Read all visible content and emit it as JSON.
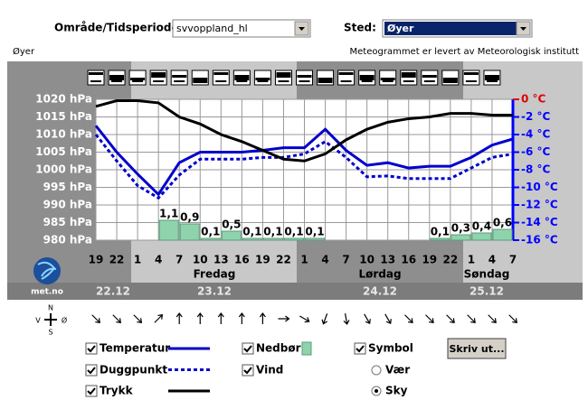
{
  "header": {
    "area_label": "Område/Tidsperiode:",
    "area_value": "svvoppland_hl",
    "place_label": "Sted:",
    "place_value": "Øyer"
  },
  "chart_header": {
    "place": "Øyer",
    "credit": "Meteogrammet er levert av Meteorologisk institutt"
  },
  "chart_data": {
    "type": "meteogram",
    "categories": [
      "19",
      "22",
      "1",
      "4",
      "7",
      "10",
      "13",
      "16",
      "19",
      "22",
      "1",
      "4",
      "7",
      "10",
      "13",
      "16",
      "19",
      "22",
      "1",
      "4",
      "7"
    ],
    "days": [
      {
        "date": "22.12"
      },
      {
        "name": "Fredag",
        "date": "23.12"
      },
      {
        "name": "Lørdag",
        "date": "24.12"
      },
      {
        "name": "Søndag",
        "date": "25.12"
      }
    ],
    "ylim": [
      980,
      1020
    ],
    "yticks": [
      {
        "value": 1020,
        "label": "1020 hPa"
      },
      {
        "value": 1015,
        "label": "1015 hPa"
      },
      {
        "value": 1010,
        "label": "1010 hPa"
      },
      {
        "value": 1005,
        "label": "1005 hPa"
      },
      {
        "value": 1000,
        "label": "1000 hPa"
      },
      {
        "value": 995,
        "label": "995 hPa"
      },
      {
        "value": 990,
        "label": "990 hPa"
      },
      {
        "value": 985,
        "label": "985 hPa"
      },
      {
        "value": 980,
        "label": "980 hPa"
      }
    ],
    "y2lim": [
      -16,
      0
    ],
    "y2ticks": [
      {
        "value": 0,
        "label": "0 °C"
      },
      {
        "value": -2,
        "label": "-2 °C"
      },
      {
        "value": -4,
        "label": "-4 °C"
      },
      {
        "value": -6,
        "label": "-6 °C"
      },
      {
        "value": -8,
        "label": "-8 °C"
      },
      {
        "value": -10,
        "label": "-10 °C"
      },
      {
        "value": -12,
        "label": "-12 °C"
      },
      {
        "value": -14,
        "label": "-14 °C"
      },
      {
        "value": -16,
        "label": "-16 °C"
      }
    ],
    "grid": true,
    "series": [
      {
        "name": "Temperatur",
        "color": "#0000cc",
        "axis": "y2",
        "values": [
          -3,
          -6,
          -8.5,
          -10.8,
          -7.2,
          -6,
          -6,
          -6,
          -5.8,
          -5.5,
          -5.5,
          -3.4,
          -5.8,
          -7.5,
          -7.2,
          -7.8,
          -7.6,
          -7.6,
          -6.6,
          -5.2,
          -4.5
        ]
      },
      {
        "name": "Duggpunkt",
        "color": "#0000cc",
        "axis": "y2",
        "dashed": true,
        "values": [
          -4,
          -7,
          -9.8,
          -11.2,
          -8.6,
          -6.8,
          -6.8,
          -6.8,
          -6.6,
          -6.6,
          -6.2,
          -4.8,
          -6.6,
          -8.8,
          -8.7,
          -9,
          -9,
          -9,
          -7.8,
          -6.6,
          -6.2
        ]
      },
      {
        "name": "Trykk",
        "color": "#000000",
        "values": [
          1018,
          1019.6,
          1019.6,
          1019,
          1015,
          1013,
          1010,
          1008,
          1005.5,
          1003,
          1002.5,
          1004.5,
          1008.5,
          1011.5,
          1013.5,
          1014.5,
          1015,
          1016,
          1016,
          1015.5,
          1015.5
        ]
      },
      {
        "name": "Nedbør",
        "type": "bar",
        "color": "#8fd3ad",
        "values": [
          null,
          null,
          null,
          1.1,
          0.9,
          0.1,
          0.5,
          0.1,
          0.1,
          0.1,
          0.1,
          null,
          null,
          null,
          null,
          null,
          0.1,
          0.3,
          0.4,
          0.6,
          null
        ],
        "value_labels": [
          null,
          null,
          null,
          "1,1",
          "0,9",
          "0,1",
          "0,5",
          "0,1",
          "0,1",
          "0,1",
          "0,1",
          null,
          null,
          null,
          null,
          null,
          "0,1",
          "0,3",
          "0,4",
          "0,6",
          null
        ]
      }
    ],
    "wind": {
      "name": "Vind",
      "directions": [
        135,
        135,
        135,
        45,
        0,
        0,
        0,
        0,
        0,
        90,
        120,
        200,
        170,
        150,
        150,
        135,
        135,
        135,
        135,
        135,
        135
      ]
    }
  },
  "logo": "met.no",
  "compass": {
    "n": "N",
    "s": "S",
    "w": "V",
    "e": "Ø"
  },
  "controls": {
    "symbol": "Symbol",
    "radio": [
      {
        "label": "Vær",
        "checked": false
      },
      {
        "label": "Sky",
        "checked": true
      }
    ],
    "print": "Skriv ut..."
  }
}
